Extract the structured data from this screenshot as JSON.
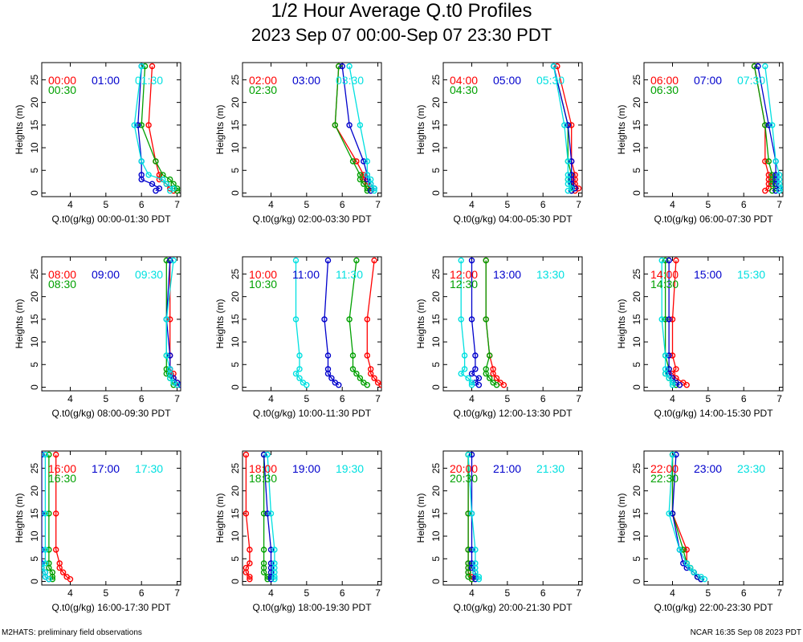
{
  "title": "1/2 Hour Average Q.t0 Profiles",
  "subtitle": "2023 Sep 07 00:00-Sep 07 23:30 PDT",
  "footer_left": "M2HATS: preliminary field observations",
  "footer_right": "NCAR 16:35 Sep 08 2023 PDT",
  "colors": {
    "first": "#ff0000",
    "second": "#00a000",
    "third": "#0000cc",
    "fourth": "#00e0e0"
  },
  "chart_data": {
    "type": "line",
    "ylabel": "Heights (m)",
    "heights": [
      0.5,
      1,
      2,
      3,
      4,
      7,
      15,
      28
    ],
    "xlim": [
      3.2,
      7.1
    ],
    "ylim": [
      -0.8,
      28.8
    ],
    "xticks": [
      4,
      5,
      6,
      7
    ],
    "yticks": [
      0,
      5,
      10,
      15,
      20,
      25
    ],
    "panels": [
      {
        "xlabel": "Q.t0(g/kg) 00:00-01:30 PDT",
        "series": [
          {
            "name": "00:00",
            "values": [
              6.9,
              6.8,
              6.7,
              6.5,
              6.5,
              6.4,
              6.2,
              6.3
            ]
          },
          {
            "name": "00:30",
            "values": [
              7.0,
              7.0,
              6.9,
              6.8,
              6.6,
              6.4,
              6.0,
              6.1
            ]
          },
          {
            "name": "01:00",
            "values": [
              6.4,
              6.5,
              6.3,
              6.0,
              6.0,
              6.0,
              5.9,
              6.0
            ]
          },
          {
            "name": "01:30",
            "values": [
              6.8,
              6.9,
              6.7,
              6.6,
              6.2,
              6.0,
              5.8,
              6.0
            ]
          }
        ]
      },
      {
        "xlabel": "Q.t0(g/kg) 02:00-03:30 PDT",
        "series": [
          {
            "name": "02:00",
            "values": [
              6.8,
              6.8,
              6.7,
              6.6,
              6.6,
              6.4,
              5.8,
              5.9
            ]
          },
          {
            "name": "02:30",
            "values": [
              6.7,
              6.7,
              6.6,
              6.5,
              6.5,
              6.3,
              5.8,
              5.9
            ]
          },
          {
            "name": "03:00",
            "values": [
              6.8,
              6.9,
              6.8,
              6.7,
              6.7,
              6.6,
              6.2,
              6.0
            ]
          },
          {
            "name": "03:30",
            "values": [
              6.9,
              6.9,
              6.8,
              6.8,
              6.7,
              6.7,
              6.5,
              6.2
            ]
          }
        ]
      },
      {
        "xlabel": "Q.t0(g/kg) 04:00-05:30 PDT",
        "series": [
          {
            "name": "04:00",
            "values": [
              6.9,
              7.0,
              6.9,
              6.9,
              6.9,
              6.8,
              6.8,
              6.4
            ]
          },
          {
            "name": "04:30",
            "values": [
              6.8,
              6.8,
              6.8,
              6.7,
              6.8,
              6.7,
              6.7,
              6.3
            ]
          },
          {
            "name": "05:00",
            "values": [
              6.8,
              6.9,
              6.8,
              6.8,
              6.8,
              6.8,
              6.7,
              6.3
            ]
          },
          {
            "name": "05:30",
            "values": [
              6.7,
              6.8,
              6.7,
              6.7,
              6.7,
              6.7,
              6.6,
              6.3
            ]
          }
        ]
      },
      {
        "xlabel": "Q.t0(g/kg) 06:00-07:30 PDT",
        "series": [
          {
            "name": "06:00",
            "values": [
              6.6,
              6.7,
              6.7,
              6.7,
              6.7,
              6.6,
              6.6,
              6.3
            ]
          },
          {
            "name": "06:30",
            "values": [
              6.8,
              6.9,
              6.8,
              6.8,
              6.8,
              6.7,
              6.6,
              6.3
            ]
          },
          {
            "name": "07:00",
            "values": [
              6.9,
              7.0,
              6.9,
              6.9,
              6.9,
              6.9,
              6.7,
              6.4
            ]
          },
          {
            "name": "07:30",
            "values": [
              7.0,
              7.1,
              7.0,
              7.0,
              7.0,
              6.9,
              6.8,
              6.6
            ]
          }
        ]
      },
      {
        "xlabel": "Q.t0(g/kg) 08:00-09:30 PDT",
        "series": [
          {
            "name": "08:00",
            "values": [
              7.0,
              7.0,
              6.9,
              6.9,
              6.8,
              6.8,
              6.8,
              6.8
            ]
          },
          {
            "name": "08:30",
            "values": [
              6.9,
              6.9,
              6.8,
              6.7,
              6.7,
              6.7,
              6.7,
              6.7
            ]
          },
          {
            "name": "09:00",
            "values": [
              7.1,
              7.0,
              6.9,
              6.8,
              6.8,
              6.8,
              6.7,
              6.8
            ]
          },
          {
            "name": "09:30",
            "values": [
              7.0,
              6.9,
              6.8,
              6.8,
              6.8,
              6.7,
              6.7,
              6.9
            ]
          }
        ]
      },
      {
        "xlabel": "Q.t0(g/kg) 10:00-11:30 PDT",
        "series": [
          {
            "name": "10:00",
            "values": [
              7.1,
              7.0,
              6.9,
              6.8,
              6.8,
              6.7,
              6.7,
              6.9
            ]
          },
          {
            "name": "10:30",
            "values": [
              6.7,
              6.6,
              6.5,
              6.4,
              6.3,
              6.3,
              6.2,
              6.4
            ]
          },
          {
            "name": "11:00",
            "values": [
              5.9,
              5.8,
              5.7,
              5.6,
              5.6,
              5.6,
              5.5,
              5.6
            ]
          },
          {
            "name": "11:30",
            "values": [
              5.0,
              4.9,
              4.8,
              4.7,
              4.8,
              4.8,
              4.7,
              4.7
            ]
          }
        ]
      },
      {
        "xlabel": "Q.t0(g/kg) 12:00-13:30 PDT",
        "series": [
          {
            "name": "12:00",
            "values": [
              4.9,
              4.8,
              4.7,
              4.6,
              4.6,
              4.5,
              4.4,
              4.4
            ]
          },
          {
            "name": "12:30",
            "values": [
              4.7,
              4.6,
              4.5,
              4.4,
              4.4,
              4.5,
              4.4,
              4.4
            ]
          },
          {
            "name": "13:00",
            "values": [
              4.2,
              4.1,
              4.2,
              4.0,
              4.1,
              4.1,
              4.0,
              4.0
            ]
          },
          {
            "name": "13:30",
            "values": [
              4.0,
              4.0,
              3.9,
              3.7,
              3.8,
              3.8,
              3.7,
              3.7
            ]
          }
        ]
      },
      {
        "xlabel": "Q.t0(g/kg) 14:00-15:30 PDT",
        "series": [
          {
            "name": "14:00",
            "values": [
              4.4,
              4.3,
              4.1,
              4.0,
              4.1,
              4.0,
              4.0,
              4.1
            ]
          },
          {
            "name": "14:30",
            "values": [
              4.1,
              4.0,
              3.9,
              3.8,
              3.9,
              3.8,
              3.8,
              3.8
            ]
          },
          {
            "name": "15:00",
            "values": [
              4.2,
              4.1,
              4.0,
              3.9,
              3.9,
              3.9,
              3.9,
              3.9
            ]
          },
          {
            "name": "15:30",
            "values": [
              4.0,
              4.0,
              3.9,
              3.8,
              3.8,
              3.8,
              3.7,
              3.7
            ]
          }
        ]
      },
      {
        "xlabel": "Q.t0(g/kg) 16:00-17:30 PDT",
        "series": [
          {
            "name": "16:00",
            "values": [
              4.0,
              3.9,
              3.8,
              3.7,
              3.7,
              3.6,
              3.6,
              3.6
            ]
          },
          {
            "name": "16:30",
            "values": [
              3.5,
              3.5,
              3.5,
              3.4,
              3.4,
              3.4,
              3.4,
              3.4
            ]
          },
          {
            "name": "17:00",
            "values": [
              3.4,
              3.3,
              3.3,
              3.2,
              3.2,
              3.2,
              3.2,
              3.2
            ]
          },
          {
            "name": "17:30",
            "values": [
              3.4,
              3.3,
              3.3,
              3.2,
              3.3,
              3.3,
              3.3,
              3.3
            ]
          }
        ]
      },
      {
        "xlabel": "Q.t0(g/kg) 18:00-19:30 PDT",
        "series": [
          {
            "name": "18:00",
            "values": [
              3.4,
              3.4,
              3.3,
              3.3,
              3.4,
              3.4,
              3.3,
              3.3
            ]
          },
          {
            "name": "18:30",
            "values": [
              3.9,
              3.9,
              3.8,
              3.8,
              3.8,
              3.8,
              3.8,
              3.8
            ]
          },
          {
            "name": "19:00",
            "values": [
              4.0,
              4.0,
              4.0,
              4.0,
              4.0,
              4.0,
              3.9,
              3.8
            ]
          },
          {
            "name": "19:30",
            "values": [
              4.1,
              4.1,
              4.1,
              4.1,
              4.1,
              4.1,
              4.0,
              3.9
            ]
          }
        ]
      },
      {
        "xlabel": "Q.t0(g/kg) 20:00-21:30 PDT",
        "series": [
          {
            "name": "20:00",
            "values": [
              4.0,
              4.0,
              3.9,
              3.9,
              3.9,
              3.9,
              3.9,
              3.9
            ]
          },
          {
            "name": "20:30",
            "values": [
              4.0,
              3.9,
              3.9,
              3.9,
              3.9,
              3.9,
              3.9,
              3.9
            ]
          },
          {
            "name": "21:00",
            "values": [
              4.1,
              4.1,
              4.1,
              4.0,
              4.0,
              4.0,
              4.0,
              4.0
            ]
          },
          {
            "name": "21:30",
            "values": [
              4.2,
              4.2,
              4.1,
              4.1,
              4.1,
              4.1,
              4.0,
              3.9
            ]
          }
        ]
      },
      {
        "xlabel": "Q.t0(g/kg) 22:00-23:30 PDT",
        "series": [
          {
            "name": "22:00",
            "values": [
              4.8,
              4.7,
              4.6,
              4.5,
              4.4,
              4.4,
              4.0,
              4.0
            ]
          },
          {
            "name": "22:30",
            "values": [
              4.8,
              4.7,
              4.6,
              4.5,
              4.4,
              4.3,
              4.0,
              4.0
            ]
          },
          {
            "name": "23:00",
            "values": [
              4.8,
              4.7,
              4.6,
              4.4,
              4.3,
              4.2,
              4.0,
              4.1
            ]
          },
          {
            "name": "23:30",
            "values": [
              4.9,
              4.8,
              4.6,
              4.5,
              4.4,
              4.2,
              3.9,
              4.0
            ]
          }
        ]
      }
    ]
  }
}
